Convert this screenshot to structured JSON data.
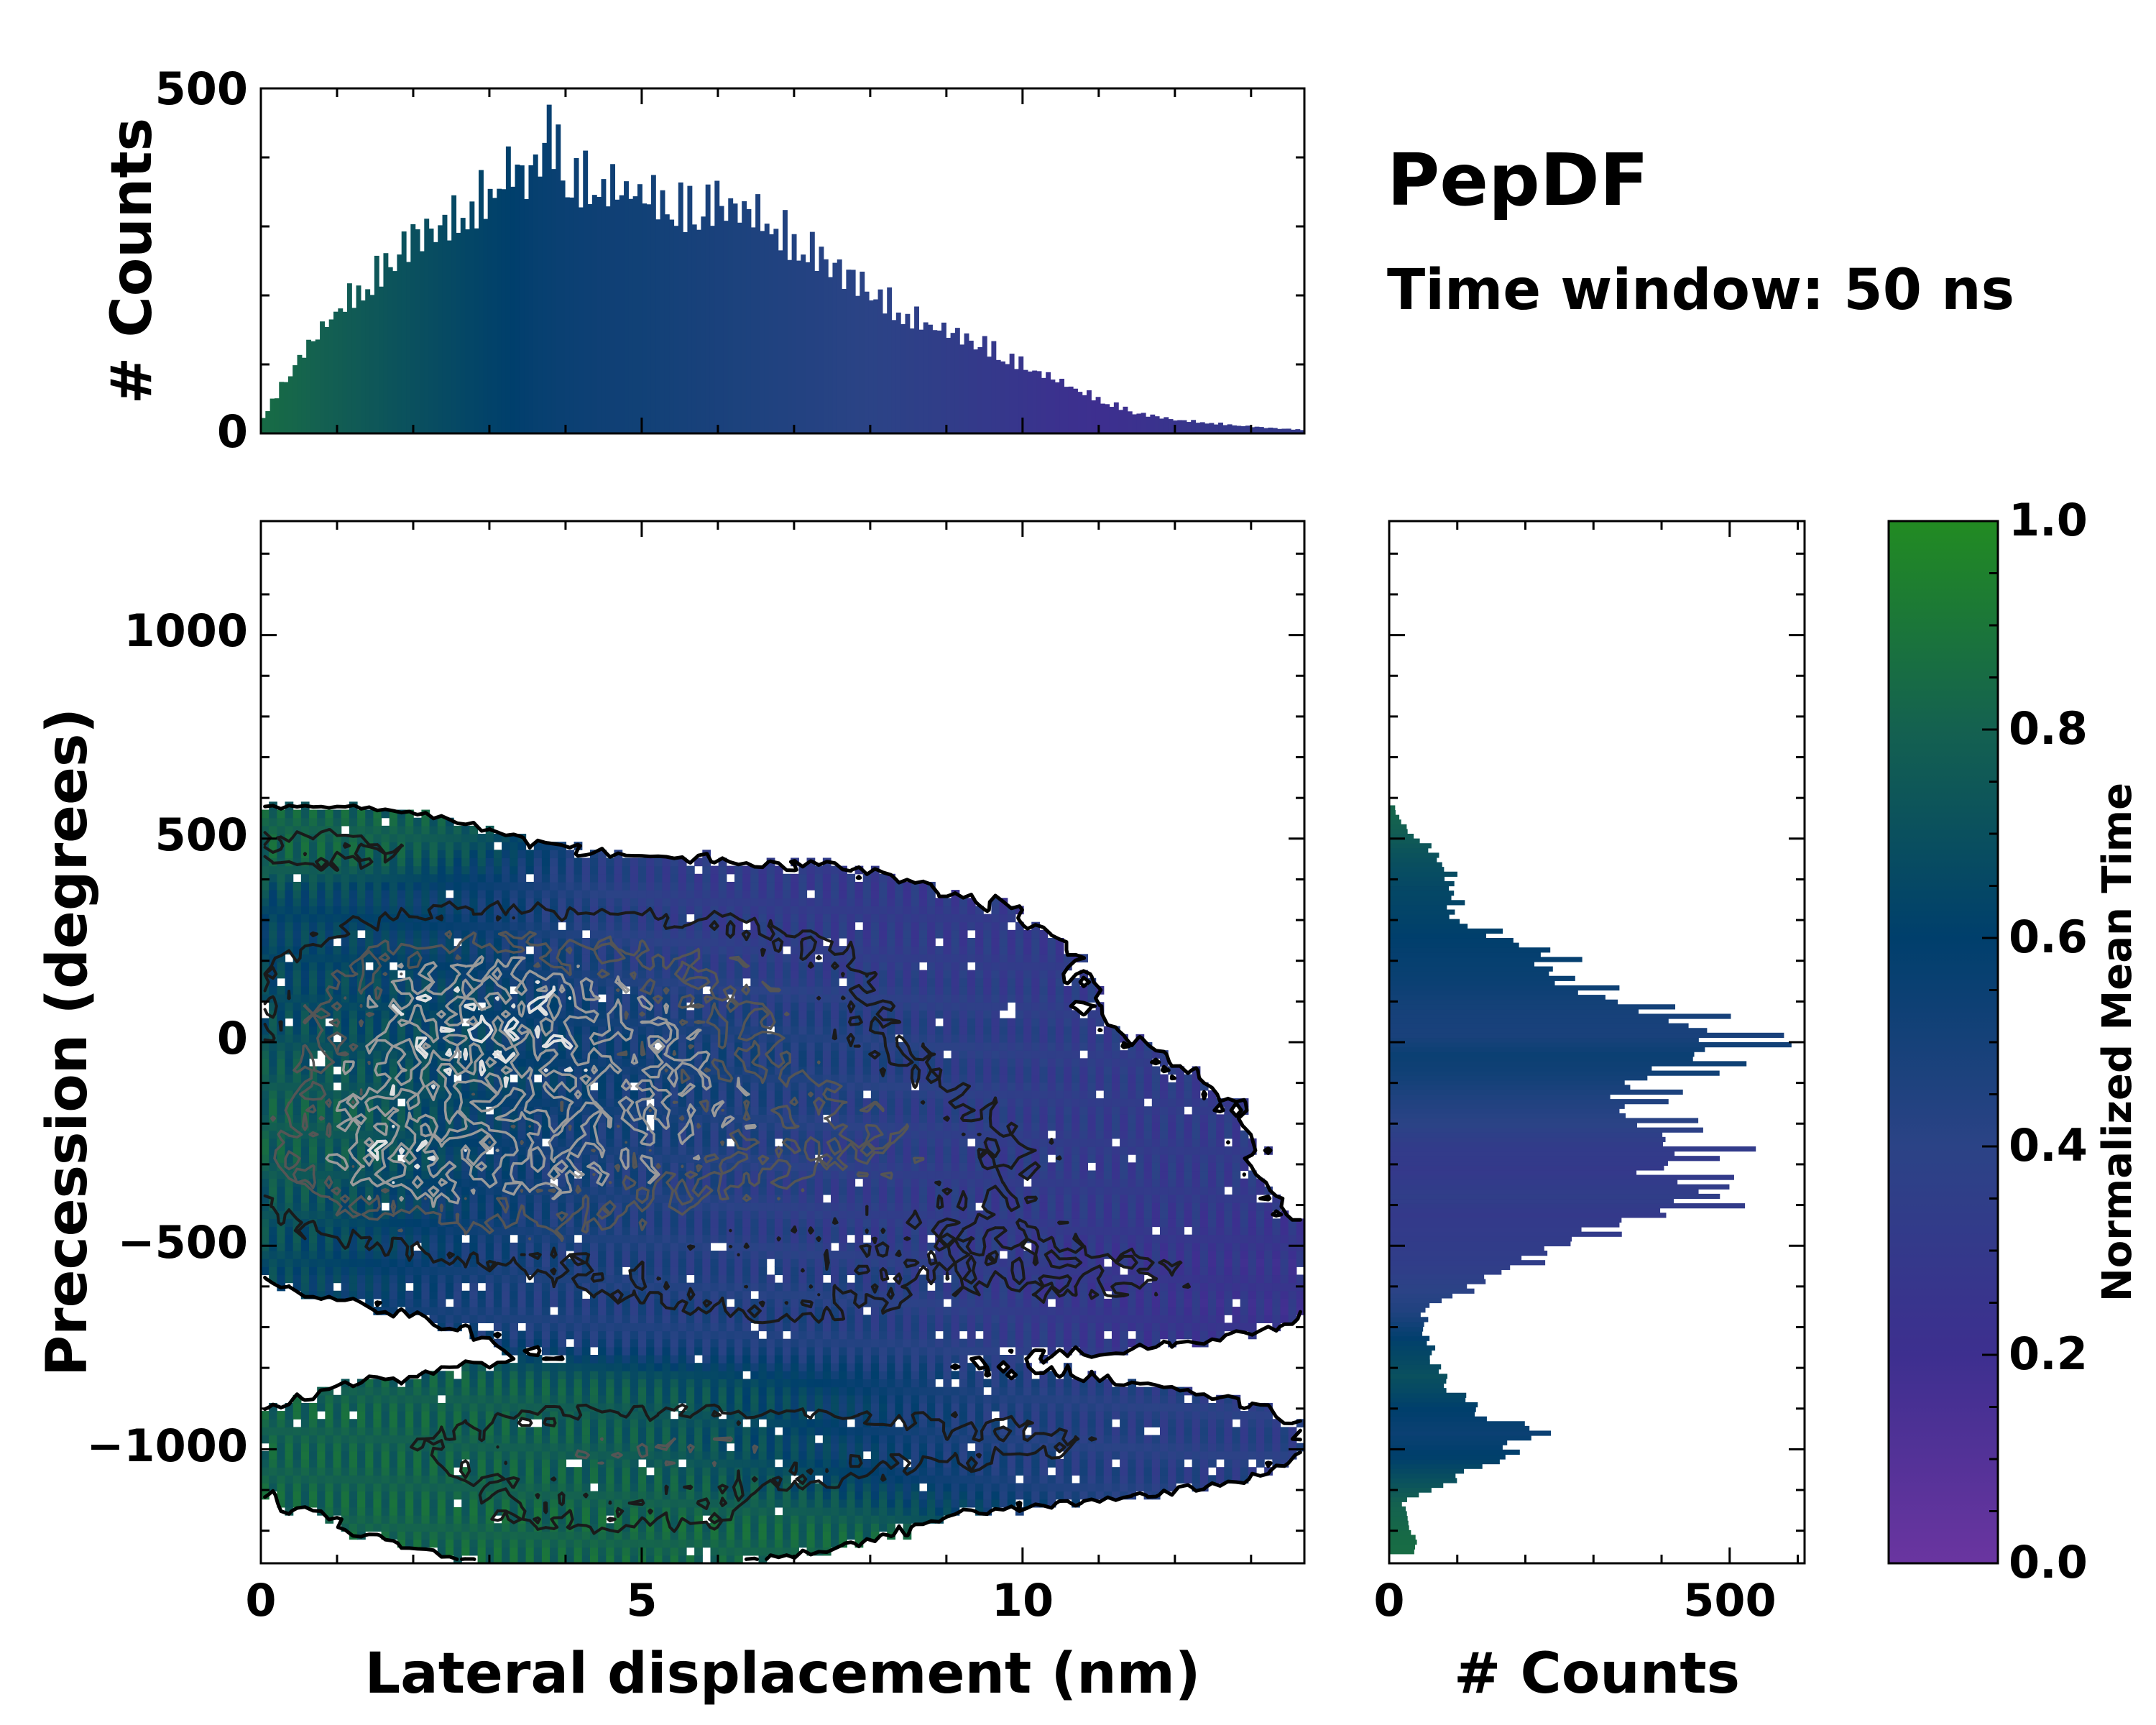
{
  "chart_data": {
    "type": "heatmap",
    "title": "PepDF",
    "subtitle": "Time window: 50 ns",
    "xlabel": "Lateral displacement (nm)",
    "ylabel": "Precession (degrees)",
    "xlim": [
      0,
      13.7
    ],
    "ylim": [
      -1280,
      1280
    ],
    "xticks": [
      0,
      5,
      10
    ],
    "xtick_labels": [
      "0",
      "5",
      "10"
    ],
    "yticks": [
      1000,
      500,
      0,
      -500,
      -1000
    ],
    "ytick_labels": [
      "1000",
      "500",
      "0",
      "−500",
      "−1000"
    ],
    "top_hist": {
      "ylabel": "# Counts",
      "ylim": [
        0,
        500
      ],
      "yticks": [
        0,
        500
      ],
      "ytick_labels": [
        "0",
        "500"
      ],
      "bins_x": [
        0,
        0.5,
        1,
        1.5,
        2,
        2.5,
        3,
        3.3,
        3.5,
        3.8,
        4,
        4.5,
        5,
        5.5,
        6,
        6.5,
        7,
        7.5,
        8,
        8.5,
        9,
        9.5,
        10,
        10.5,
        11,
        11.5,
        12,
        12.5,
        13,
        13.7
      ],
      "counts": [
        20,
        110,
        180,
        230,
        290,
        310,
        350,
        390,
        370,
        450,
        380,
        360,
        350,
        330,
        340,
        320,
        280,
        250,
        210,
        170,
        150,
        130,
        100,
        75,
        50,
        30,
        20,
        15,
        10,
        5
      ],
      "mean_time": [
        0.85,
        0.82,
        0.78,
        0.74,
        0.7,
        0.66,
        0.62,
        0.6,
        0.58,
        0.56,
        0.55,
        0.53,
        0.52,
        0.5,
        0.48,
        0.46,
        0.44,
        0.42,
        0.4,
        0.37,
        0.34,
        0.3,
        0.26,
        0.22,
        0.2,
        0.22,
        0.25,
        0.28,
        0.3,
        0.3
      ]
    },
    "right_hist": {
      "xlabel": "# Counts",
      "xlim": [
        0,
        610
      ],
      "xticks": [
        0,
        500
      ],
      "xtick_labels": [
        "0",
        "500"
      ],
      "bins_y": [
        -1230,
        -1130,
        -1030,
        -960,
        -900,
        -820,
        -740,
        -660,
        -560,
        -470,
        -420,
        -380,
        -320,
        -260,
        -200,
        -140,
        -80,
        -30,
        20,
        80,
        150,
        220,
        300,
        380,
        450,
        520,
        560
      ],
      "counts": [
        40,
        20,
        160,
        230,
        130,
        80,
        60,
        50,
        180,
        310,
        420,
        530,
        440,
        490,
        420,
        380,
        440,
        530,
        550,
        420,
        270,
        250,
        100,
        100,
        80,
        30,
        10
      ],
      "mean_time": [
        0.85,
        0.8,
        0.62,
        0.55,
        0.6,
        0.7,
        0.62,
        0.45,
        0.35,
        0.32,
        0.3,
        0.35,
        0.3,
        0.32,
        0.4,
        0.45,
        0.52,
        0.55,
        0.48,
        0.5,
        0.55,
        0.58,
        0.62,
        0.65,
        0.7,
        0.78,
        0.82
      ]
    },
    "heatmap_clusters": [
      {
        "x": 0.6,
        "y": 480,
        "sx": 1.2,
        "sy": 50,
        "w": 0.7,
        "t": 0.82
      },
      {
        "x": 2.0,
        "y": 100,
        "sx": 1.6,
        "sy": 170,
        "w": 1.0,
        "t": 0.72
      },
      {
        "x": 1.0,
        "y": -250,
        "sx": 1.2,
        "sy": 150,
        "w": 0.9,
        "t": 0.86
      },
      {
        "x": 4.8,
        "y": -80,
        "sx": 2.2,
        "sy": 170,
        "w": 1.0,
        "t": 0.55
      },
      {
        "x": 3.2,
        "y": -380,
        "sx": 1.8,
        "sy": 130,
        "w": 0.9,
        "t": 0.5
      },
      {
        "x": 8.0,
        "y": -300,
        "sx": 2.6,
        "sy": 190,
        "w": 0.8,
        "t": 0.32
      },
      {
        "x": 5.5,
        "y": 200,
        "sx": 2.6,
        "sy": 130,
        "w": 0.7,
        "t": 0.3
      },
      {
        "x": 6.5,
        "y": -620,
        "sx": 2.0,
        "sy": 90,
        "w": 0.6,
        "t": 0.45
      },
      {
        "x": 4.5,
        "y": -1000,
        "sx": 2.6,
        "sy": 100,
        "w": 0.9,
        "t": 0.8
      },
      {
        "x": 9.5,
        "y": -980,
        "sx": 2.4,
        "sy": 80,
        "w": 0.6,
        "t": 0.38
      },
      {
        "x": 11.5,
        "y": -580,
        "sx": 1.6,
        "sy": 90,
        "w": 0.5,
        "t": 0.25
      },
      {
        "x": 4.8,
        "y": -1180,
        "sx": 1.8,
        "sy": 60,
        "w": 0.55,
        "t": 0.82
      }
    ],
    "colorbar": {
      "label": "Normalized Mean Time",
      "range": [
        0,
        1
      ],
      "ticks": [
        0.0,
        0.2,
        0.4,
        0.6,
        0.8,
        1.0
      ],
      "tick_labels": [
        "0.0",
        "0.2",
        "0.4",
        "0.6",
        "0.8",
        "1.0"
      ],
      "colors": [
        "#6a35a0",
        "#3d2f8f",
        "#2b4386",
        "#003f6c",
        "#146150",
        "#228b22"
      ]
    }
  }
}
